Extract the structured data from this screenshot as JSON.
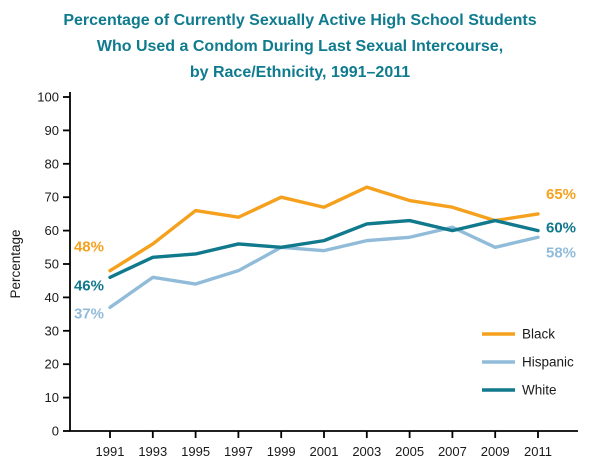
{
  "title": {
    "line1": "Percentage of Currently Sexually Active High School Students",
    "line2": "Who Used a Condom During Last Sexual Intercourse,",
    "line3": "by Race/Ethnicity, 1991–2011"
  },
  "colors": {
    "title_teal": "#0F7B8E",
    "black_series": "#F5A11E",
    "hispanic_series": "#91BCD9",
    "white_series": "#11798C",
    "axis": "#000000"
  },
  "chart_data": {
    "type": "line",
    "x": [
      1991,
      1993,
      1995,
      1997,
      1999,
      2001,
      2003,
      2005,
      2007,
      2009,
      2011
    ],
    "series": [
      {
        "name": "Black",
        "color": "#F5A11E",
        "values": [
          48,
          56,
          66,
          64,
          70,
          67,
          73,
          69,
          67,
          63,
          65
        ],
        "start_label": "48%",
        "end_label": "65%"
      },
      {
        "name": "Hispanic",
        "color": "#91BCD9",
        "values": [
          37,
          46,
          44,
          48,
          55,
          54,
          57,
          58,
          61,
          55,
          58
        ],
        "start_label": "37%",
        "end_label": "58%"
      },
      {
        "name": "White",
        "color": "#11798C",
        "values": [
          46,
          52,
          53,
          56,
          55,
          57,
          62,
          63,
          60,
          63,
          60
        ],
        "start_label": "46%",
        "end_label": "60%"
      }
    ],
    "ylabel": "Percentage",
    "xlabel": "",
    "ylim": [
      0,
      100
    ],
    "ytick_step": 10,
    "grid": false,
    "legend_position": "bottom-right",
    "legend_order": [
      "Black",
      "Hispanic",
      "White"
    ]
  }
}
